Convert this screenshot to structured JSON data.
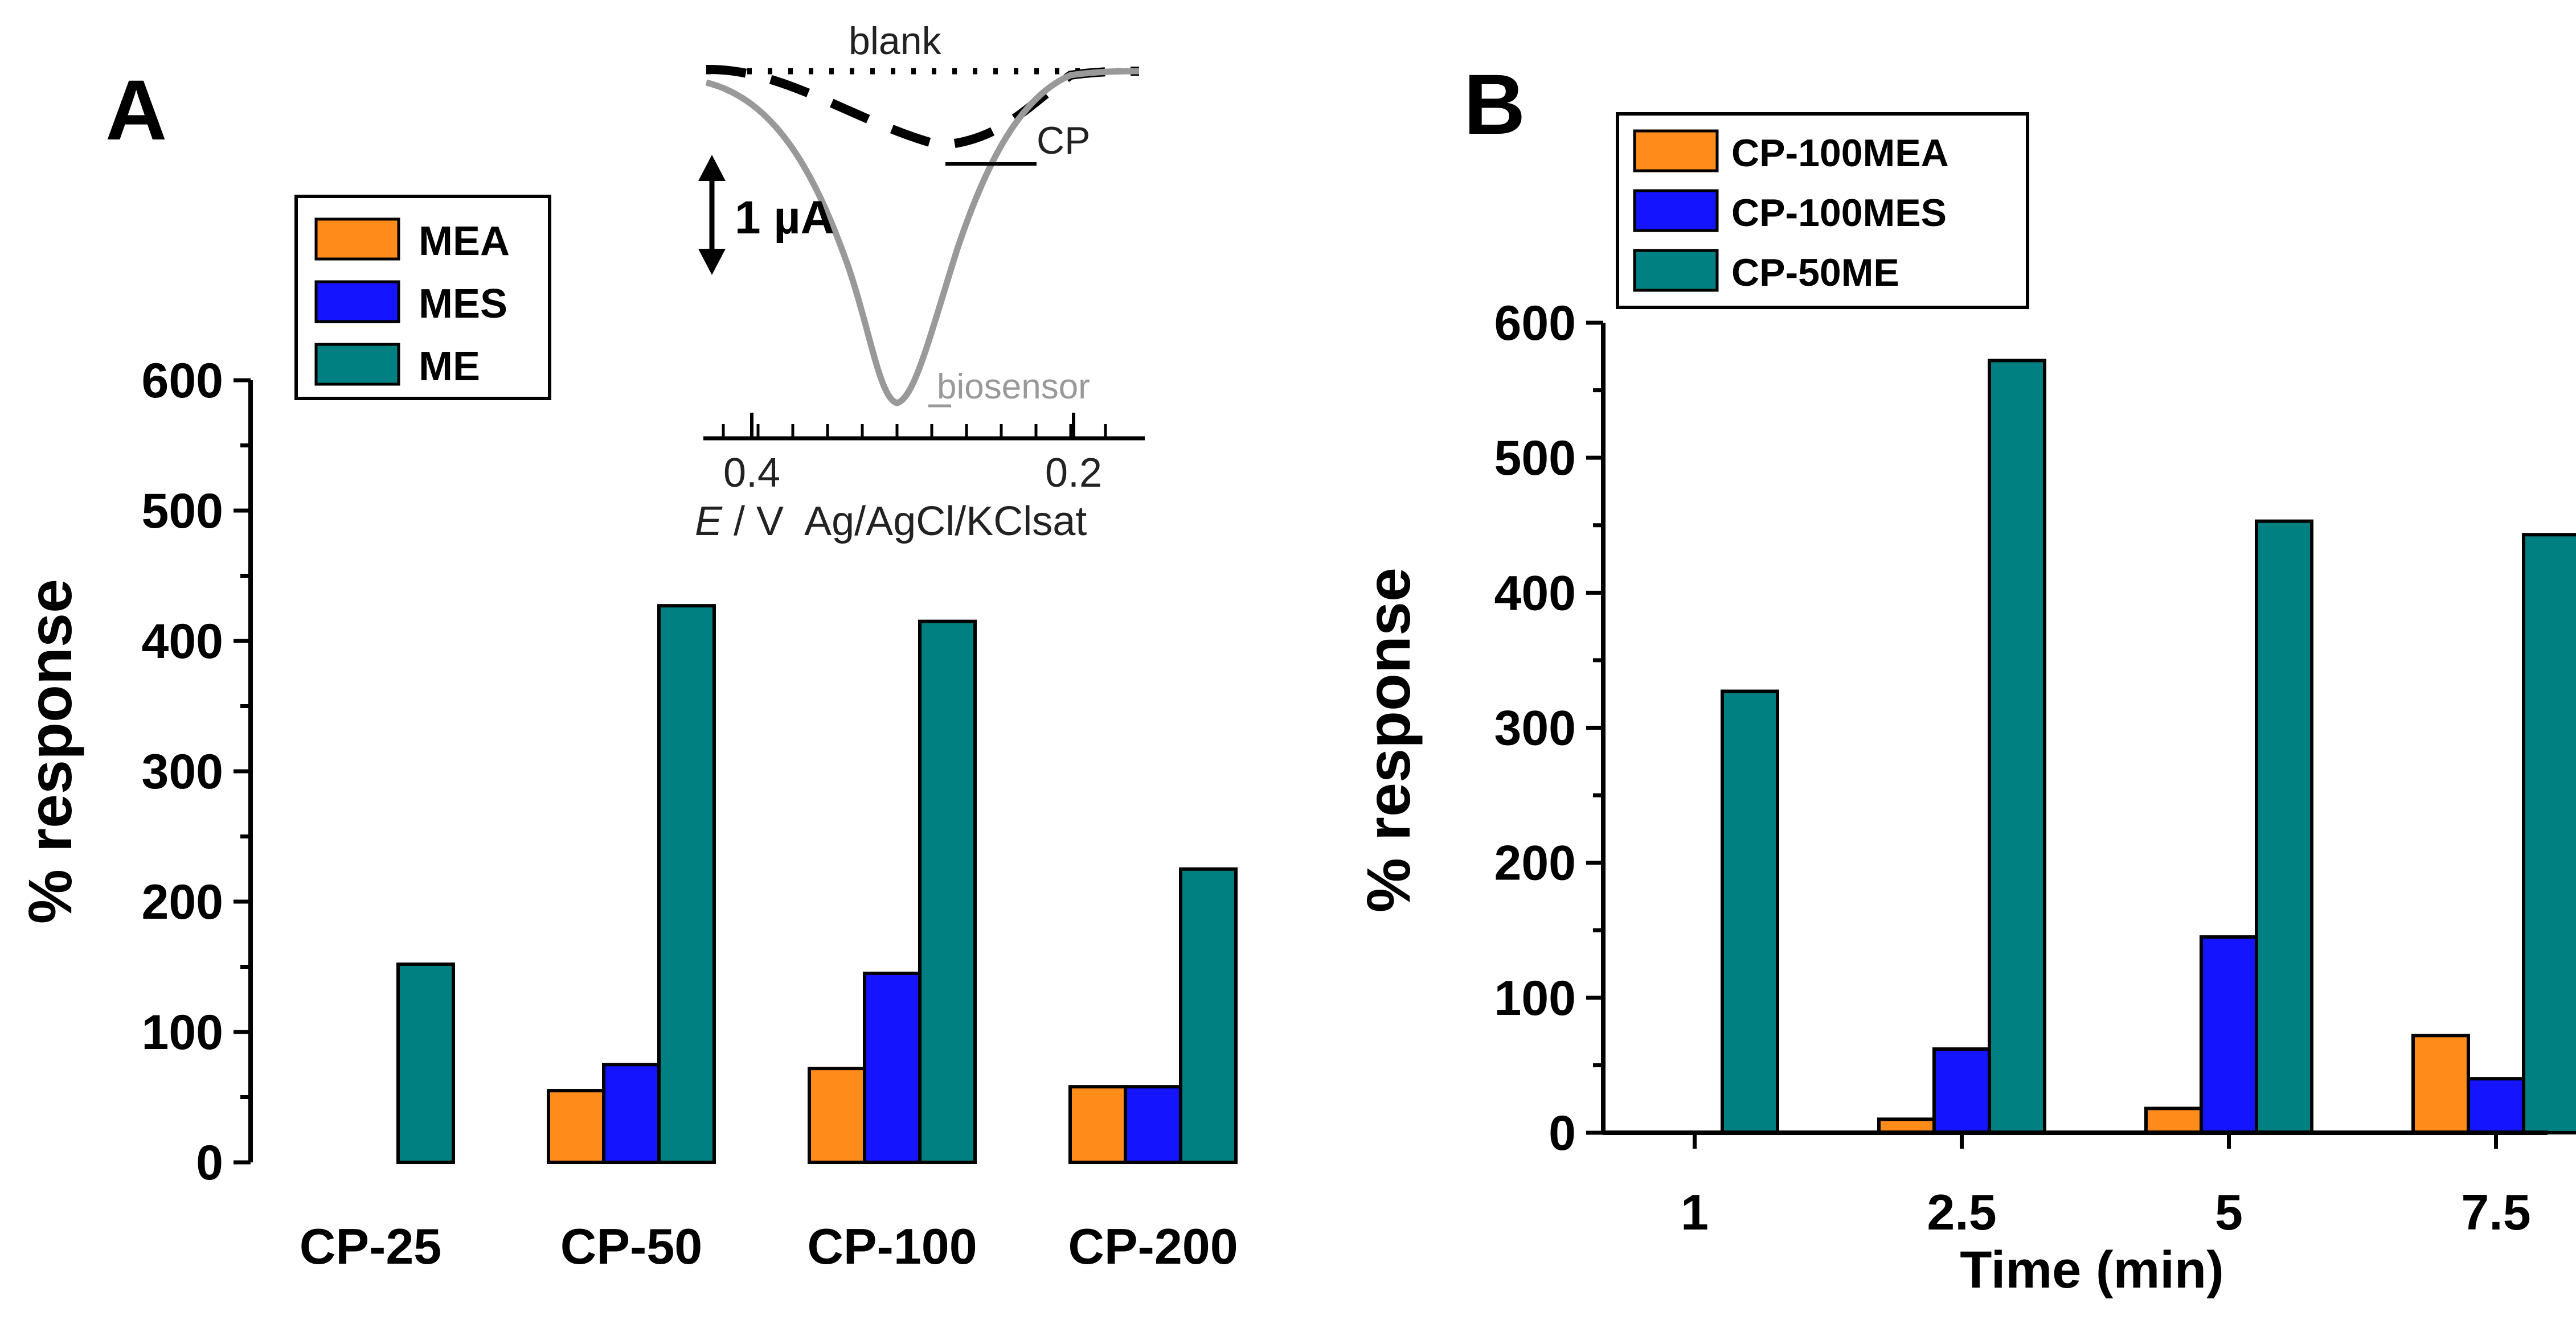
{
  "panels": {
    "A": {
      "letter": "A"
    },
    "B": {
      "letter": "B"
    }
  },
  "inset": {
    "blank_label": "blank",
    "cp_label": "CP",
    "biosensor_label": "biosensor",
    "scale_label": "1 µA",
    "xticks": [
      "0.4",
      "0.2"
    ],
    "xlabel_symbol": "E",
    "xlabel_rest": " / V  Ag/AgCl/KClsat"
  },
  "colors": {
    "orange": "#FF8C1A",
    "blue": "#1414FF",
    "teal": "#008080",
    "inset_gray": "#999999"
  },
  "chart_data": [
    {
      "type": "bar",
      "panel": "A",
      "categories": [
        "CP-25",
        "CP-50",
        "CP-100",
        "CP-200"
      ],
      "series": [
        {
          "name": "MEA",
          "values": [
            0,
            55,
            72,
            58
          ]
        },
        {
          "name": "MES",
          "values": [
            0,
            75,
            145,
            58
          ]
        },
        {
          "name": "ME",
          "values": [
            152,
            427,
            415,
            225
          ]
        }
      ],
      "title": "",
      "xlabel": "",
      "ylabel": "% response",
      "ylim": [
        0,
        600
      ],
      "yticks": [
        "0",
        "100",
        "200",
        "300",
        "400",
        "500",
        "600"
      ],
      "legend": "top-left"
    },
    {
      "type": "bar",
      "panel": "B",
      "categories": [
        "1",
        "2.5",
        "5",
        "7.5"
      ],
      "series": [
        {
          "name": "CP-100MEA",
          "values": [
            0,
            10,
            18,
            72
          ]
        },
        {
          "name": "CP-100MES",
          "values": [
            0,
            62,
            145,
            40
          ]
        },
        {
          "name": "CP-50ME",
          "values": [
            327,
            572,
            453,
            443
          ]
        }
      ],
      "title": "",
      "xlabel": "Time (min)",
      "ylabel": "% response",
      "ylim": [
        0,
        600
      ],
      "yticks": [
        "0",
        "100",
        "200",
        "300",
        "400",
        "500",
        "600"
      ],
      "legend": "top-left"
    }
  ]
}
